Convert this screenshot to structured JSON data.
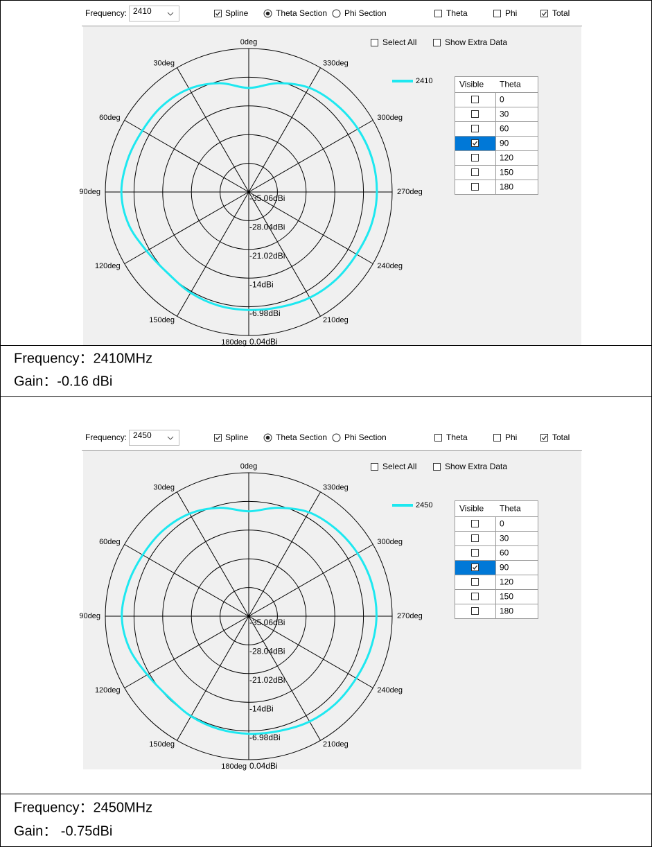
{
  "chart_data": [
    {
      "type": "polar",
      "controls": {
        "frequency_label": "Frequency:",
        "frequency": "2410",
        "spline": {
          "label": "Spline",
          "checked": true
        },
        "sections": [
          {
            "label": "Theta Section",
            "selected": true
          },
          {
            "label": "Phi Section",
            "selected": false
          }
        ],
        "components": [
          {
            "label": "Theta",
            "checked": false
          },
          {
            "label": "Phi",
            "checked": false
          },
          {
            "label": "Total",
            "checked": true
          }
        ],
        "select_all": {
          "label": "Select All",
          "checked": false
        },
        "show_extra": {
          "label": "Show Extra Data",
          "checked": false
        }
      },
      "table": {
        "columns": [
          "Visible",
          "Theta"
        ],
        "rows": [
          {
            "theta": "0",
            "visible": false
          },
          {
            "theta": "30",
            "visible": false
          },
          {
            "theta": "60",
            "visible": false
          },
          {
            "theta": "90",
            "visible": true
          },
          {
            "theta": "120",
            "visible": false
          },
          {
            "theta": "150",
            "visible": false
          },
          {
            "theta": "180",
            "visible": false
          }
        ]
      },
      "thetaticks": [
        {
          "value": 0,
          "label": "0deg"
        },
        {
          "value": 30,
          "label": "30deg"
        },
        {
          "value": 60,
          "label": "60deg"
        },
        {
          "value": 90,
          "label": "90deg"
        },
        {
          "value": 120,
          "label": "120deg"
        },
        {
          "value": 150,
          "label": "150deg"
        },
        {
          "value": 180,
          "label": "180deg"
        },
        {
          "value": 210,
          "label": "210deg"
        },
        {
          "value": 240,
          "label": "240deg"
        },
        {
          "value": 270,
          "label": "270deg"
        },
        {
          "value": 300,
          "label": "300deg"
        },
        {
          "value": 330,
          "label": "330deg"
        }
      ],
      "rlim": [
        -35.06,
        0.04
      ],
      "rticks": [
        {
          "value": -35.06,
          "label": "-35.06dBi"
        },
        {
          "value": -28.04,
          "label": "-28.04dBi"
        },
        {
          "value": -21.02,
          "label": "-21.02dBi"
        },
        {
          "value": -14,
          "label": "-14dBi"
        },
        {
          "value": -6.98,
          "label": "-6.98dBi"
        },
        {
          "value": 0.04,
          "label": "0.04dBi"
        }
      ],
      "theta": [
        0,
        15,
        30,
        45,
        60,
        75,
        90,
        105,
        120,
        135,
        150,
        165,
        180,
        195,
        210,
        225,
        240,
        255,
        270,
        285,
        300,
        315,
        330,
        345
      ],
      "series": [
        {
          "name": "2410",
          "color": "#1ee8f0",
          "values": [
            -9.6,
            -7.5,
            -5.9,
            -5.2,
            -5.0,
            -4.4,
            -3.9,
            -4.6,
            -6.2,
            -7.0,
            -6.6,
            -6.3,
            -6.2,
            -5.9,
            -5.2,
            -4.8,
            -4.6,
            -4.0,
            -3.7,
            -3.8,
            -4.2,
            -4.8,
            -5.6,
            -7.5
          ]
        }
      ]
    },
    {
      "type": "polar",
      "controls": {
        "frequency_label": "Frequency:",
        "frequency": "2450",
        "spline": {
          "label": "Spline",
          "checked": true
        },
        "sections": [
          {
            "label": "Theta Section",
            "selected": true
          },
          {
            "label": "Phi Section",
            "selected": false
          }
        ],
        "components": [
          {
            "label": "Theta",
            "checked": false
          },
          {
            "label": "Phi",
            "checked": false
          },
          {
            "label": "Total",
            "checked": true
          }
        ],
        "select_all": {
          "label": "Select All",
          "checked": false
        },
        "show_extra": {
          "label": "Show Extra Data",
          "checked": false
        }
      },
      "table": {
        "columns": [
          "Visible",
          "Theta"
        ],
        "rows": [
          {
            "theta": "0",
            "visible": false
          },
          {
            "theta": "30",
            "visible": false
          },
          {
            "theta": "60",
            "visible": false
          },
          {
            "theta": "90",
            "visible": true
          },
          {
            "theta": "120",
            "visible": false
          },
          {
            "theta": "150",
            "visible": false
          },
          {
            "theta": "180",
            "visible": false
          }
        ]
      },
      "thetaticks": [
        {
          "value": 0,
          "label": "0deg"
        },
        {
          "value": 30,
          "label": "30deg"
        },
        {
          "value": 60,
          "label": "60deg"
        },
        {
          "value": 90,
          "label": "90deg"
        },
        {
          "value": 120,
          "label": "120deg"
        },
        {
          "value": 150,
          "label": "150deg"
        },
        {
          "value": 180,
          "label": "180deg"
        },
        {
          "value": 210,
          "label": "210deg"
        },
        {
          "value": 240,
          "label": "240deg"
        },
        {
          "value": 270,
          "label": "270deg"
        },
        {
          "value": 300,
          "label": "300deg"
        },
        {
          "value": 330,
          "label": "330deg"
        }
      ],
      "rlim": [
        -35.06,
        0.04
      ],
      "rticks": [
        {
          "value": -35.06,
          "label": "-35.06dBi"
        },
        {
          "value": -28.04,
          "label": "-28.04dBi"
        },
        {
          "value": -21.02,
          "label": "-21.02dBi"
        },
        {
          "value": -14,
          "label": "-14dBi"
        },
        {
          "value": -6.98,
          "label": "-6.98dBi"
        },
        {
          "value": 0.04,
          "label": "0.04dBi"
        }
      ],
      "theta": [
        0,
        15,
        30,
        45,
        60,
        75,
        90,
        105,
        120,
        135,
        150,
        165,
        180,
        195,
        210,
        225,
        240,
        255,
        270,
        285,
        300,
        315,
        330,
        345
      ],
      "series": [
        {
          "name": "2450",
          "color": "#1ee8f0",
          "values": [
            -9.4,
            -7.6,
            -6.1,
            -5.4,
            -5.1,
            -4.5,
            -4.0,
            -4.8,
            -6.4,
            -7.2,
            -6.8,
            -6.5,
            -6.3,
            -6.0,
            -5.3,
            -4.9,
            -4.7,
            -4.2,
            -3.8,
            -3.9,
            -4.3,
            -4.9,
            -5.7,
            -7.6
          ]
        }
      ]
    }
  ],
  "captions": [
    {
      "frequency": "Frequency：2410MHz",
      "gain": "Gain：-0.16 dBi"
    },
    {
      "frequency": "Frequency：2450MHz",
      "gain": "Gain： -0.75dBi"
    }
  ]
}
